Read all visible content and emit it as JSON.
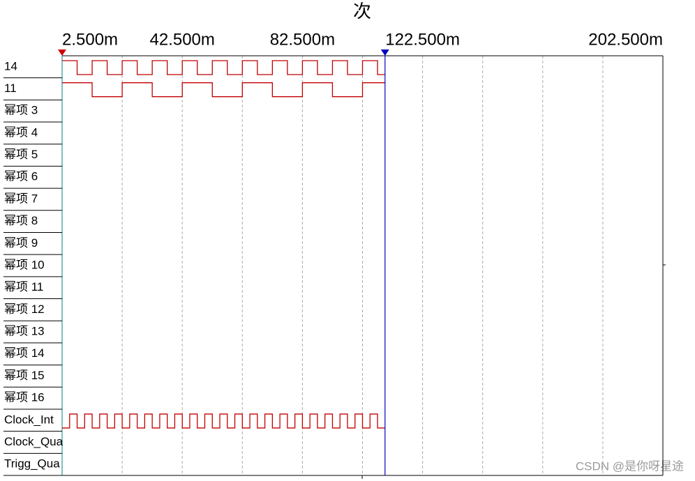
{
  "title": "次",
  "time_axis": {
    "xlim": [
      2.5,
      202.5
    ],
    "ticks": [
      {
        "value": 2.5,
        "label": "2.500m"
      },
      {
        "value": 42.5,
        "label": "42.500m"
      },
      {
        "value": 82.5,
        "label": "82.500m"
      },
      {
        "value": 122.5,
        "label": "122.500m"
      },
      {
        "value": 202.5,
        "label": "202.500m"
      }
    ],
    "grid": [
      22.5,
      42.5,
      62.5,
      82.5,
      102.5,
      122.5,
      142.5,
      162.5,
      182.5
    ]
  },
  "cursors": [
    {
      "value": 2.5,
      "color": "#d00000"
    },
    {
      "value": 110,
      "color": "#0000c0"
    }
  ],
  "channels": [
    {
      "label": "14",
      "wave": {
        "start_level": 1,
        "half_period": 5,
        "end": 110
      }
    },
    {
      "label": "11",
      "wave": {
        "start_level": 1,
        "half_period": 10,
        "end": 110
      }
    },
    {
      "label": "幂项 3"
    },
    {
      "label": "幂项 4"
    },
    {
      "label": "幂项 5"
    },
    {
      "label": "幂项 6"
    },
    {
      "label": "幂项 7"
    },
    {
      "label": "幂项 8"
    },
    {
      "label": "幂项 9"
    },
    {
      "label": "幂项 10"
    },
    {
      "label": "幂项 11"
    },
    {
      "label": "幂项 12"
    },
    {
      "label": "幂项 13"
    },
    {
      "label": "幂项 14"
    },
    {
      "label": "幂项 15"
    },
    {
      "label": "幂项 16"
    },
    {
      "label": "Clock_Int",
      "wave": {
        "start_level": 0,
        "half_period": 2.5,
        "end": 110
      }
    },
    {
      "label": "Clock_Qua"
    },
    {
      "label": "Trigg_Qua"
    }
  ],
  "watermark": "CSDN @是你呀星途"
}
